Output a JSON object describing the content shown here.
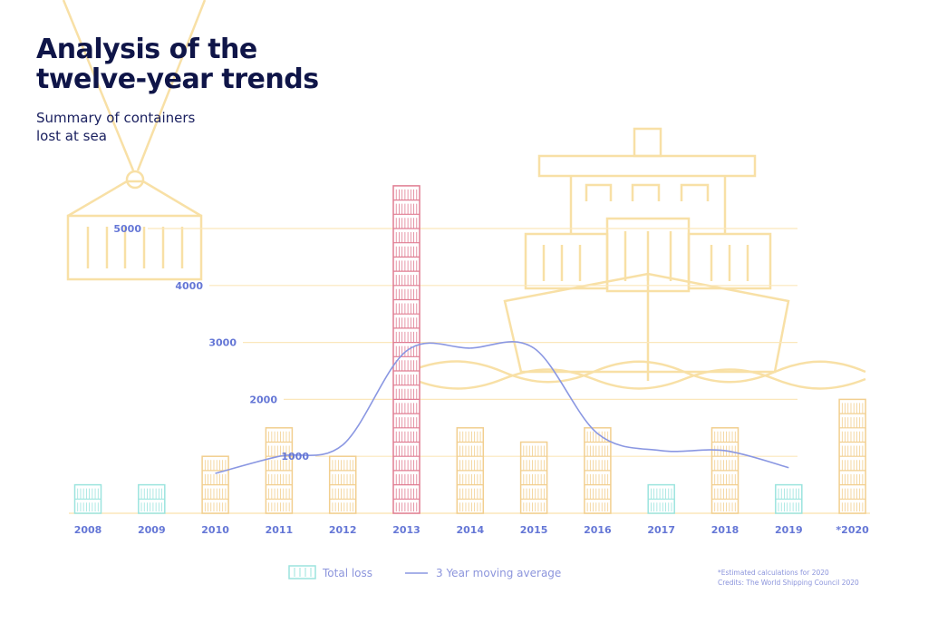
{
  "header": {
    "title_line1": "Analysis of the",
    "title_line2": "twelve-year trends",
    "subtitle_line1": "Summary of containers",
    "subtitle_line2": "lost at sea"
  },
  "legend": {
    "total_loss": "Total loss",
    "moving_average": "3 Year moving average"
  },
  "footnote": {
    "estimate": "*Estimated calculations for 2020",
    "credits": "Credits: The World Shipping Council 2020"
  },
  "colors": {
    "axis_text": "#6577d6",
    "average_line": "#8a97e2",
    "bar_orange": "#f2cf8f",
    "bar_teal": "#9be4de",
    "bar_red": "#e07d92",
    "illustration": "#f8e0a6",
    "title": "#0f1548"
  },
  "chart_data": {
    "type": "bar",
    "title": "Analysis of the twelve-year trends",
    "subtitle": "Summary of containers lost at sea",
    "categories": [
      "2008",
      "2009",
      "2010",
      "2011",
      "2012",
      "2013",
      "2014",
      "2015",
      "2016",
      "2017",
      "2018",
      "2019",
      "*2020"
    ],
    "ytick_labels": [
      "1000",
      "2000",
      "3000",
      "4000",
      "5000"
    ],
    "yticks": [
      1000,
      2000,
      3000,
      4000,
      5000
    ],
    "ylim": [
      0,
      5800
    ],
    "grid": true,
    "legend_position": "bottom",
    "series": [
      {
        "name": "Total loss",
        "type": "bar",
        "values": [
          500,
          500,
          1000,
          1500,
          1000,
          5750,
          1500,
          1250,
          1500,
          500,
          1500,
          500,
          2000
        ],
        "colors": [
          "teal",
          "teal",
          "orange",
          "orange",
          "orange",
          "red",
          "orange",
          "orange",
          "orange",
          "teal",
          "orange",
          "teal",
          "orange"
        ]
      },
      {
        "name": "3 Year moving average",
        "type": "line",
        "x": [
          "2010",
          "2011",
          "2012",
          "2013",
          "2014",
          "2015",
          "2016",
          "2017",
          "2018",
          "2019"
        ],
        "values": [
          700,
          1000,
          1200,
          2850,
          2900,
          2900,
          1400,
          1100,
          1100,
          800
        ]
      }
    ]
  }
}
